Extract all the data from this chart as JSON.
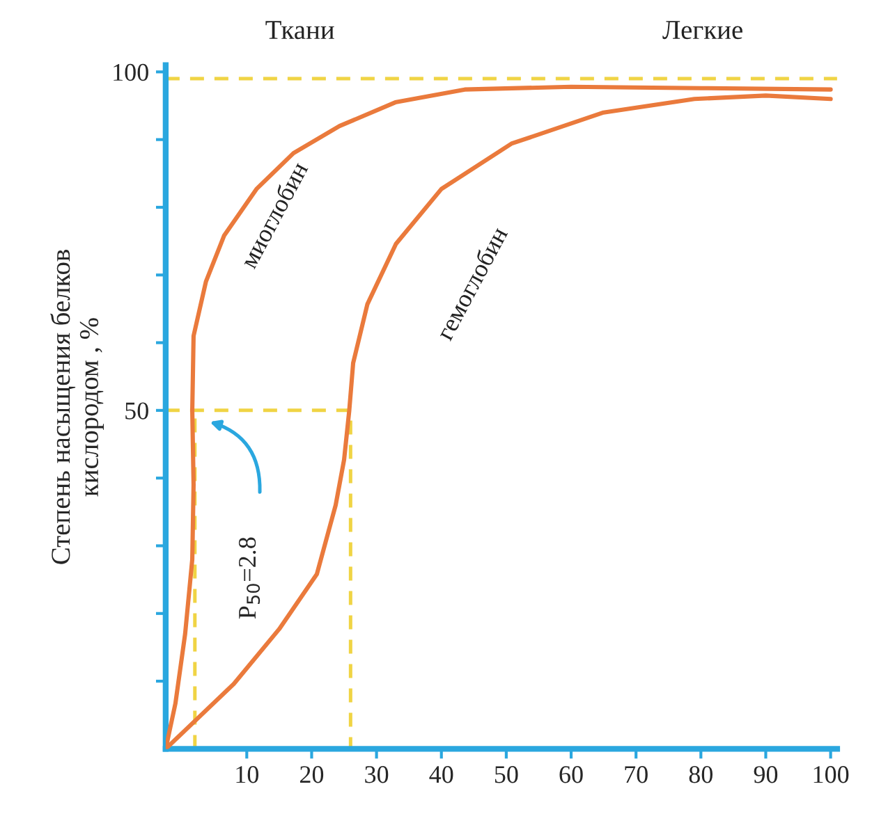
{
  "chart_data": {
    "type": "line",
    "ylabel": "Степень насыщения белков\nкислородом , %",
    "series": [
      {
        "name": "миоглобин",
        "color": "#ea7a3c",
        "x": [
          -2.5,
          -1,
          0.5,
          1.6,
          1.8,
          1.6,
          1.8,
          3.7,
          6.5,
          11.5,
          17.2,
          24.3,
          32.9,
          43.6,
          60,
          80,
          100
        ],
        "values": [
          0,
          6.7,
          17,
          28,
          39,
          50,
          61,
          69,
          75.8,
          82.7,
          88,
          92,
          95.5,
          97.4,
          97.8,
          97.6,
          97.4
        ]
      },
      {
        "name": "гемоглобин",
        "color": "#ea7a3c",
        "x": [
          -2.5,
          8,
          15,
          20.8,
          23.7,
          25,
          25.8,
          26.4,
          28.6,
          33,
          40,
          50.8,
          65,
          79,
          90,
          100
        ],
        "values": [
          0,
          9.6,
          17.7,
          25.8,
          36,
          42.7,
          50,
          57,
          65.7,
          74.6,
          82.7,
          89.4,
          94,
          96,
          96.5,
          96
        ]
      },
      {
        "color": "#f0d444",
        "line_style": "dashed",
        "x": [
          -2.5,
          26,
          26
        ],
        "values": [
          50,
          50,
          0
        ]
      },
      {
        "color": "#f0d444",
        "line_style": "dashed",
        "x": [
          2,
          2
        ],
        "values": [
          0,
          50
        ]
      }
    ],
    "ref_lines": [
      {
        "axis": "y",
        "value": 99,
        "color": "#f0d444",
        "line_style": "dashed"
      }
    ],
    "annotations": [
      "Ткани",
      "Легкие",
      "P$_{50}$=2.8"
    ],
    "xlim": [
      -2.5,
      101
    ],
    "ylim": [
      0,
      101
    ],
    "xticks": [
      10,
      20,
      30,
      40,
      50,
      60,
      70,
      80,
      90,
      100
    ],
    "yticks": [
      {
        "value": 10,
        "label": null
      },
      {
        "value": 20,
        "label": null
      },
      {
        "value": 30,
        "label": null
      },
      {
        "value": 40,
        "label": null
      },
      50,
      {
        "value": 60,
        "label": null
      },
      {
        "value": 70,
        "label": null
      },
      {
        "value": 80,
        "label": null
      },
      {
        "value": 90,
        "label": null
      },
      100
    ],
    "grid": false,
    "legend": false,
    "marker": "none",
    "line_style": "solid"
  }
}
